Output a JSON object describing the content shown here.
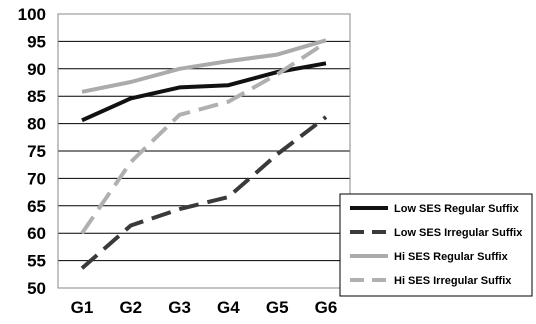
{
  "chart_data": {
    "type": "line",
    "categories": [
      "G1",
      "G2",
      "G3",
      "G4",
      "G5",
      "G6"
    ],
    "ylim": [
      50,
      100
    ],
    "yticks": [
      50,
      55,
      60,
      65,
      70,
      75,
      80,
      85,
      90,
      95,
      100
    ],
    "grid": true,
    "legend_position": "bottom-right",
    "series": [
      {
        "name": "Low SES Regular Suffix",
        "values": [
          80.6,
          84.6,
          86.6,
          87.0,
          89.4,
          91.0
        ],
        "color": "#111111",
        "dash": "solid"
      },
      {
        "name": "Low SES Irregular Suffix",
        "values": [
          53.6,
          61.4,
          64.4,
          66.6,
          74.4,
          81.2
        ],
        "color": "#3a3a3a",
        "dash": "dashed"
      },
      {
        "name": "Hi SES Regular Suffix",
        "values": [
          85.8,
          87.6,
          90.0,
          91.4,
          92.6,
          95.2
        ],
        "color": "#ababab",
        "dash": "solid"
      },
      {
        "name": "Hi SES Irregular Suffix",
        "values": [
          60.0,
          73.0,
          81.6,
          84.0,
          89.0,
          94.8
        ],
        "color": "#b0b0b0",
        "dash": "dashed"
      }
    ]
  }
}
